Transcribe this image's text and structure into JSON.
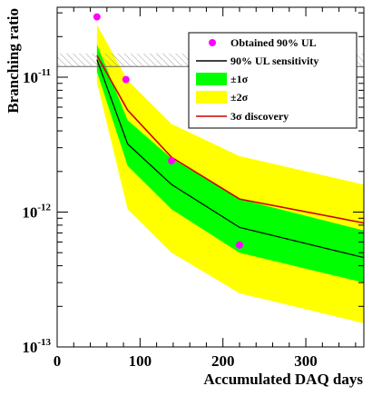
{
  "chart_data": {
    "type": "line",
    "title": "",
    "xlabel": "Accumulated DAQ days",
    "ylabel": "Branching ratio",
    "xlim": [
      0,
      370
    ],
    "ylim": [
      1e-13,
      3.3e-11
    ],
    "yscale": "log",
    "x_ticks": [
      {
        "value": 0,
        "label": "0"
      },
      {
        "value": 100,
        "label": "100"
      },
      {
        "value": 200,
        "label": "200"
      },
      {
        "value": 300,
        "label": "300"
      }
    ],
    "y_ticks": [
      {
        "value": 1e-11,
        "base": "10",
        "exp": "-11"
      },
      {
        "value": 1e-12,
        "base": "10",
        "exp": "-12"
      },
      {
        "value": 1e-13,
        "base": "10",
        "exp": "-13"
      }
    ],
    "excluded_region": {
      "y_low": 1.2e-11,
      "y_high": 1.5e-11
    },
    "x": [
      48,
      85,
      138,
      220,
      370
    ],
    "series": [
      {
        "name": "Obtained 90% UL",
        "kind": "points",
        "color": "#ff00ff",
        "x": [
          48,
          83,
          138,
          220
        ],
        "values": [
          2.8e-11,
          9.6e-12,
          2.4e-12,
          5.7e-13
        ]
      },
      {
        "name": "90% UL sensitivity",
        "kind": "line",
        "color": "#000000",
        "values": [
          1.35e-11,
          3.2e-12,
          1.6e-12,
          7.7e-13,
          4.6e-13
        ]
      },
      {
        "name": "±1σ",
        "kind": "band",
        "color": "#00ff00",
        "lower": [
          1.1e-11,
          2.2e-12,
          1.05e-12,
          5e-13,
          3e-13
        ],
        "upper": [
          1.75e-11,
          4.8e-12,
          2.5e-12,
          1.25e-12,
          7.3e-13
        ]
      },
      {
        "name": "±2σ",
        "kind": "band",
        "color": "#ffff00",
        "lower": [
          9.2e-12,
          1.05e-12,
          5e-13,
          2.5e-13,
          1.5e-13
        ],
        "upper": [
          2.45e-11,
          9.5e-12,
          4.5e-12,
          2.6e-12,
          1.6e-12
        ]
      },
      {
        "name": "3σ discovery",
        "kind": "line",
        "color": "#cc0000",
        "values": [
          1.45e-11,
          5.7e-12,
          2.55e-12,
          1.25e-12,
          8.3e-13
        ]
      }
    ],
    "legend": {
      "placement": "top-right",
      "entries": [
        {
          "label": "Obtained 90% UL",
          "symbol": "marker",
          "color": "#ff00ff"
        },
        {
          "label": "90% UL sensitivity",
          "symbol": "line",
          "color": "#000000"
        },
        {
          "label": "±1σ",
          "symbol": "box",
          "color": "#00ff00"
        },
        {
          "label": "±2σ",
          "symbol": "box",
          "color": "#ffff00"
        },
        {
          "label": "3σ discovery",
          "symbol": "line",
          "color": "#cc0000"
        }
      ]
    }
  }
}
